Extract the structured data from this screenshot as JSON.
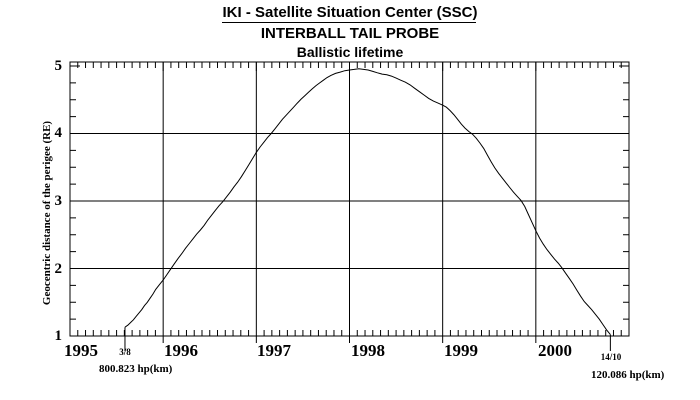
{
  "chart_data": {
    "type": "line",
    "suptitle": "IKI - Satellite Situation Center (SSC)",
    "subtitle": "INTERBALL TAIL PROBE",
    "title": "Ballistic lifetime",
    "xlabel": "",
    "ylabel": "Geocentric distance of the perigee (RE)",
    "xlim": [
      1995,
      2001
    ],
    "ylim": [
      1,
      5
    ],
    "x_tick_labels": [
      "1995",
      "1996",
      "1997",
      "1998",
      "1999",
      "2000"
    ],
    "x_tick_values": [
      1995,
      1996,
      1997,
      1998,
      1999,
      2000
    ],
    "x_minor_ticks_per_year": 12,
    "y_tick_labels": [
      "5",
      "4",
      "3",
      "2",
      "1"
    ],
    "y_tick_values": [
      5,
      4,
      3,
      2,
      1
    ],
    "y_minor_step": 0.25,
    "grid": {
      "x_at": [
        1996,
        1997,
        1998,
        1999,
        2000
      ],
      "y_at": [
        2,
        3,
        4
      ]
    },
    "legend": "none",
    "line_color": "#000000",
    "background_color": "#ffffff",
    "annotations": {
      "start": {
        "t": 1995.59,
        "date_label": "3/8",
        "value_label": "800.823 hp(km)"
      },
      "end": {
        "t": 2000.8,
        "date_label": "14/10",
        "value_label": "120.086 hp(km)"
      }
    },
    "series": [
      {
        "name": "Geocentric distance of the perigee",
        "points": [
          [
            1995.59,
            1.13
          ],
          [
            1995.62,
            1.16
          ],
          [
            1995.65,
            1.2
          ],
          [
            1995.68,
            1.24
          ],
          [
            1995.71,
            1.29
          ],
          [
            1995.74,
            1.34
          ],
          [
            1995.77,
            1.39
          ],
          [
            1995.8,
            1.45
          ],
          [
            1995.83,
            1.5
          ],
          [
            1995.86,
            1.56
          ],
          [
            1995.89,
            1.62
          ],
          [
            1995.92,
            1.69
          ],
          [
            1995.96,
            1.76
          ],
          [
            1996.0,
            1.83
          ],
          [
            1996.04,
            1.91
          ],
          [
            1996.08,
            1.99
          ],
          [
            1996.12,
            2.07
          ],
          [
            1996.16,
            2.15
          ],
          [
            1996.2,
            2.22
          ],
          [
            1996.24,
            2.3
          ],
          [
            1996.28,
            2.37
          ],
          [
            1996.32,
            2.44
          ],
          [
            1996.36,
            2.51
          ],
          [
            1996.4,
            2.57
          ],
          [
            1996.44,
            2.64
          ],
          [
            1996.48,
            2.72
          ],
          [
            1996.52,
            2.79
          ],
          [
            1996.56,
            2.86
          ],
          [
            1996.6,
            2.93
          ],
          [
            1996.64,
            2.99
          ],
          [
            1996.68,
            3.06
          ],
          [
            1996.72,
            3.13
          ],
          [
            1996.76,
            3.21
          ],
          [
            1996.8,
            3.28
          ],
          [
            1996.84,
            3.36
          ],
          [
            1996.88,
            3.45
          ],
          [
            1996.92,
            3.54
          ],
          [
            1996.96,
            3.63
          ],
          [
            1997.0,
            3.72
          ],
          [
            1997.04,
            3.8
          ],
          [
            1997.08,
            3.87
          ],
          [
            1997.12,
            3.94
          ],
          [
            1997.16,
            4.0
          ],
          [
            1997.2,
            4.07
          ],
          [
            1997.24,
            4.14
          ],
          [
            1997.28,
            4.21
          ],
          [
            1997.32,
            4.27
          ],
          [
            1997.36,
            4.33
          ],
          [
            1997.4,
            4.39
          ],
          [
            1997.44,
            4.45
          ],
          [
            1997.48,
            4.51
          ],
          [
            1997.52,
            4.56
          ],
          [
            1997.56,
            4.61
          ],
          [
            1997.6,
            4.66
          ],
          [
            1997.64,
            4.71
          ],
          [
            1997.68,
            4.75
          ],
          [
            1997.72,
            4.79
          ],
          [
            1997.76,
            4.83
          ],
          [
            1997.8,
            4.86
          ],
          [
            1997.85,
            4.89
          ],
          [
            1997.9,
            4.91
          ],
          [
            1997.95,
            4.93
          ],
          [
            1998.0,
            4.94
          ],
          [
            1998.05,
            4.95
          ],
          [
            1998.1,
            4.96
          ],
          [
            1998.15,
            4.95
          ],
          [
            1998.2,
            4.94
          ],
          [
            1998.25,
            4.92
          ],
          [
            1998.3,
            4.9
          ],
          [
            1998.35,
            4.88
          ],
          [
            1998.4,
            4.87
          ],
          [
            1998.45,
            4.85
          ],
          [
            1998.5,
            4.82
          ],
          [
            1998.55,
            4.79
          ],
          [
            1998.6,
            4.76
          ],
          [
            1998.65,
            4.72
          ],
          [
            1998.7,
            4.67
          ],
          [
            1998.75,
            4.62
          ],
          [
            1998.8,
            4.57
          ],
          [
            1998.85,
            4.52
          ],
          [
            1998.9,
            4.48
          ],
          [
            1998.95,
            4.45
          ],
          [
            1999.0,
            4.42
          ],
          [
            1999.04,
            4.39
          ],
          [
            1999.08,
            4.34
          ],
          [
            1999.12,
            4.28
          ],
          [
            1999.16,
            4.21
          ],
          [
            1999.2,
            4.14
          ],
          [
            1999.24,
            4.08
          ],
          [
            1999.28,
            4.03
          ],
          [
            1999.32,
            3.99
          ],
          [
            1999.36,
            3.93
          ],
          [
            1999.4,
            3.86
          ],
          [
            1999.44,
            3.78
          ],
          [
            1999.48,
            3.68
          ],
          [
            1999.52,
            3.58
          ],
          [
            1999.56,
            3.49
          ],
          [
            1999.6,
            3.41
          ],
          [
            1999.64,
            3.34
          ],
          [
            1999.68,
            3.27
          ],
          [
            1999.72,
            3.2
          ],
          [
            1999.76,
            3.13
          ],
          [
            1999.8,
            3.07
          ],
          [
            1999.84,
            3.01
          ],
          [
            1999.88,
            2.92
          ],
          [
            1999.92,
            2.8
          ],
          [
            1999.96,
            2.68
          ],
          [
            2000.0,
            2.56
          ],
          [
            2000.04,
            2.45
          ],
          [
            2000.08,
            2.36
          ],
          [
            2000.12,
            2.28
          ],
          [
            2000.16,
            2.21
          ],
          [
            2000.2,
            2.14
          ],
          [
            2000.24,
            2.08
          ],
          [
            2000.28,
            2.01
          ],
          [
            2000.32,
            1.93
          ],
          [
            2000.36,
            1.85
          ],
          [
            2000.4,
            1.77
          ],
          [
            2000.44,
            1.68
          ],
          [
            2000.48,
            1.59
          ],
          [
            2000.52,
            1.51
          ],
          [
            2000.56,
            1.45
          ],
          [
            2000.6,
            1.39
          ],
          [
            2000.64,
            1.32
          ],
          [
            2000.68,
            1.25
          ],
          [
            2000.72,
            1.17
          ],
          [
            2000.76,
            1.09
          ],
          [
            2000.8,
            1.02
          ]
        ]
      }
    ]
  }
}
